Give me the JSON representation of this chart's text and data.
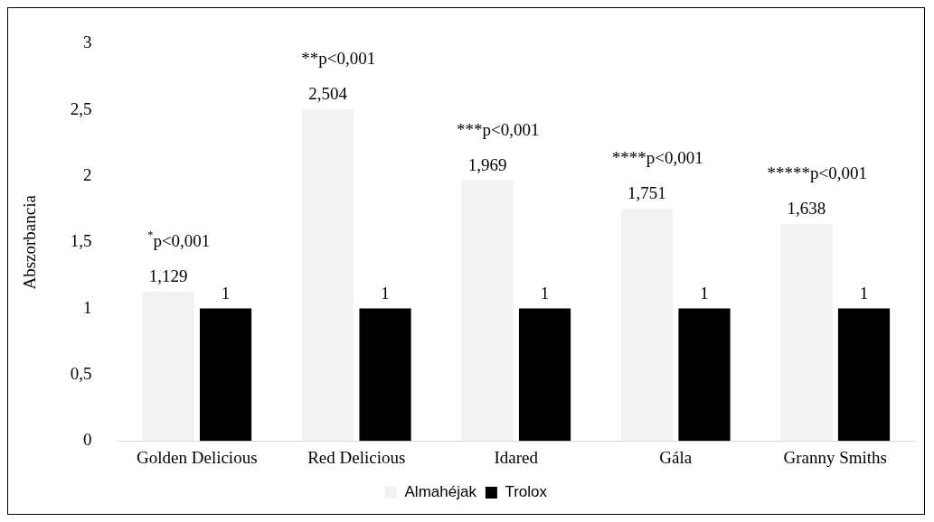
{
  "chart_data": {
    "type": "bar",
    "ylabel": "Abszorbancia",
    "categories": [
      "Golden Delicious",
      "Red Delicious",
      "Idared",
      "Gála",
      "Granny Smiths"
    ],
    "series": [
      {
        "name": "Almahéjak",
        "color": "#f2f2f2",
        "values": [
          1.129,
          2.504,
          1.969,
          1.751,
          1.638
        ],
        "value_labels": [
          "1,129",
          "2,504",
          "1,969",
          "1,751",
          "1,638"
        ]
      },
      {
        "name": "Trolox",
        "color": "#000000",
        "values": [
          1,
          1,
          1,
          1,
          1
        ],
        "value_labels": [
          "1",
          "1",
          "1",
          "1",
          "1"
        ]
      }
    ],
    "ylim": [
      0,
      3
    ],
    "yticks": [
      0,
      {
        "value": 0.5,
        "label": "0,5"
      },
      1,
      {
        "value": 1.5,
        "label": "1,5"
      },
      2,
      {
        "value": 2.5,
        "label": "2,5"
      },
      3
    ],
    "legend": "bottom",
    "grid": false,
    "annotations": [
      "$^{*}$p<0,001",
      "**p<0,001",
      "***p<0,001",
      "****p<0,001",
      "*****p<0,001"
    ]
  }
}
